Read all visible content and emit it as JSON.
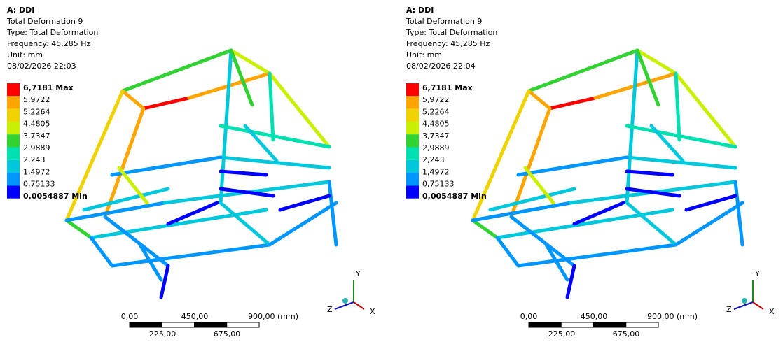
{
  "panels": [
    {
      "header": [
        "A: DDI",
        "Total Deformation 9",
        "Type: Total Deformation",
        "Frequency: 45,285 Hz",
        "Unit: mm",
        "08/02/2026 22:03"
      ],
      "legend": {
        "labels": [
          "6,7181 Max",
          "5,9722",
          "5,2264",
          "4,4805",
          "3,7347",
          "2,9889",
          "2,243",
          "1,4972",
          "0,75133",
          "0,0054887 Min"
        ],
        "colors": [
          "#ff0000",
          "#ffa500",
          "#f0d200",
          "#c8f000",
          "#32d232",
          "#00e0b0",
          "#00c8dc",
          "#0096ff",
          "#0000ff"
        ]
      },
      "scale": {
        "top": [
          "0,00",
          "450,00",
          "900,00 (mm)"
        ],
        "bottom": [
          "225,00",
          "675,00"
        ]
      },
      "triad": [
        "Y",
        "Z",
        "X"
      ]
    },
    {
      "header": [
        "A: DDI",
        "Total Deformation 9",
        "Type: Total Deformation",
        "Frequency: 45,285 Hz",
        "Unit: mm",
        "08/02/2026 22:04"
      ],
      "legend": {
        "labels": [
          "6,7181 Max",
          "5,9722",
          "5,2264",
          "4,4805",
          "3,7347",
          "2,9889",
          "2,243",
          "1,4972",
          "0,75133",
          "0,0054887 Min"
        ],
        "colors": [
          "#ff0000",
          "#ffa500",
          "#f0d200",
          "#c8f000",
          "#32d232",
          "#00e0b0",
          "#00c8dc",
          "#0096ff",
          "#0000ff"
        ]
      },
      "scale": {
        "top": [
          "0,00",
          "450,00",
          "900,00 (mm)"
        ],
        "bottom": [
          "225,00",
          "675,00"
        ]
      },
      "triad": [
        "Y",
        "Z",
        "X"
      ]
    }
  ]
}
